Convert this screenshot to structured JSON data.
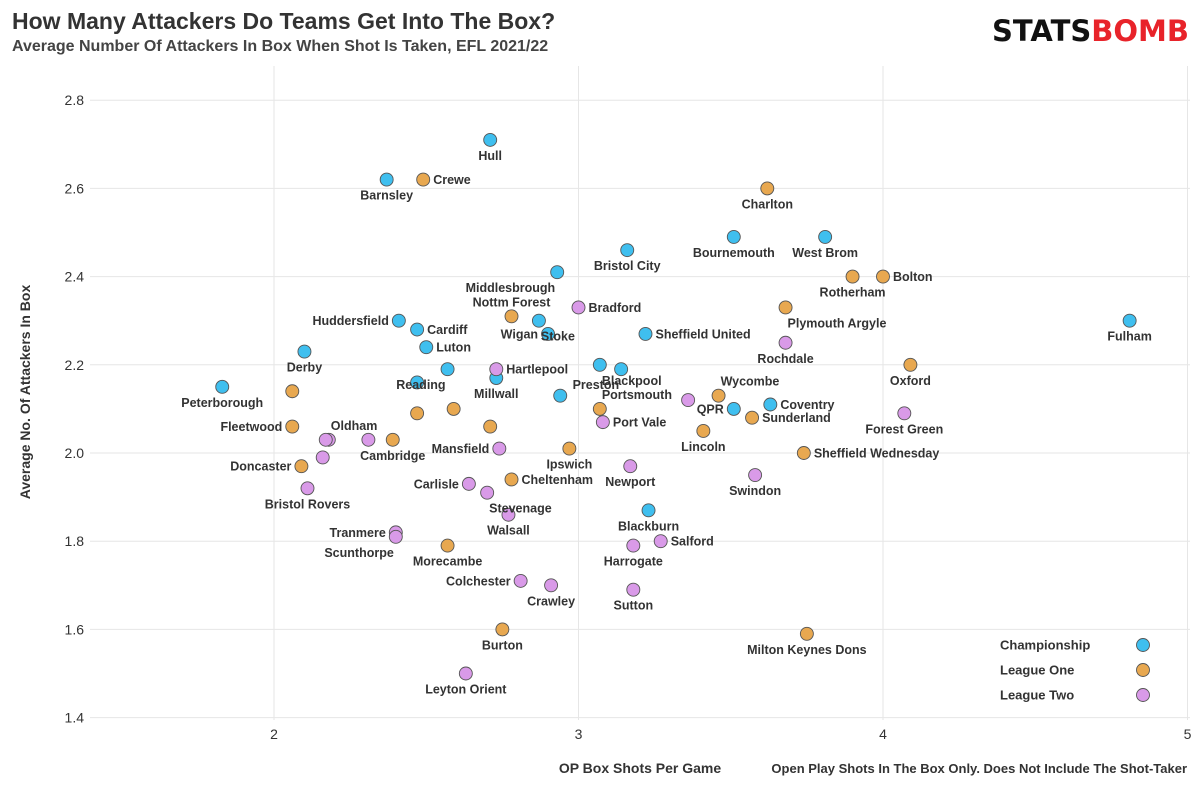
{
  "header": {
    "title": "How Many Attackers Do Teams Get Into The Box?",
    "subtitle": "Average Number Of Attackers In Box When Shot Is Taken, EFL 2021/22",
    "logo_part1": "STATS",
    "logo_part2": "BOMB"
  },
  "chart_data": {
    "type": "scatter",
    "title": "How Many Attackers Do Teams Get Into The Box?",
    "subtitle": "Average Number Of Attackers In Box When Shot Is Taken, EFL 2021/22",
    "xlabel": "OP Box Shots Per Game",
    "ylabel": "Average No. Of Attackers In Box",
    "footnote": "Open Play Shots In The Box Only. Does Not Include The Shot-Taker",
    "xlim": [
      1.4,
      5.0
    ],
    "ylim": [
      1.38,
      2.9
    ],
    "xticks": [
      2,
      3,
      4,
      5
    ],
    "yticks": [
      1.4,
      1.6,
      1.8,
      2.0,
      2.2,
      2.4,
      2.6,
      2.8
    ],
    "ytick_labels": [
      "1.4",
      "1.6",
      "1.8",
      "2.0",
      "2.2",
      "2.4",
      "2.6",
      "2.8"
    ],
    "grid": true,
    "legend_position": "bottom-right",
    "colors": {
      "Championship": "#3fbfef",
      "League One": "#e8a850",
      "League Two": "#d99ae8"
    },
    "series": [
      {
        "name": "Championship",
        "points": [
          {
            "team": "Hull",
            "x": 2.71,
            "y": 2.71,
            "anchor": "below"
          },
          {
            "team": "Barnsley",
            "x": 2.37,
            "y": 2.62,
            "anchor": "below"
          },
          {
            "team": "Bournemouth",
            "x": 3.51,
            "y": 2.49,
            "anchor": "below"
          },
          {
            "team": "West Brom",
            "x": 3.81,
            "y": 2.49,
            "anchor": "below"
          },
          {
            "team": "Bristol City",
            "x": 3.16,
            "y": 2.46,
            "anchor": "below"
          },
          {
            "team": "Middlesbrough",
            "x": 2.93,
            "y": 2.41,
            "anchor": "below-left"
          },
          {
            "team": "Fulham",
            "x": 4.81,
            "y": 2.3,
            "anchor": "below"
          },
          {
            "team": "Huddersfield",
            "x": 2.41,
            "y": 2.3,
            "anchor": "left"
          },
          {
            "team": "Cardiff",
            "x": 2.47,
            "y": 2.28,
            "anchor": "right"
          },
          {
            "team": "Stoke",
            "x": 2.87,
            "y": 2.3,
            "anchor": "below-right"
          },
          {
            "team": "Wigan",
            "x": 2.9,
            "y": 2.27,
            "anchor": "left"
          },
          {
            "team": "Sheffield United",
            "x": 3.22,
            "y": 2.27,
            "anchor": "right"
          },
          {
            "team": "Luton",
            "x": 2.5,
            "y": 2.24,
            "anchor": "right"
          },
          {
            "team": "Derby",
            "x": 2.1,
            "y": 2.23,
            "anchor": "below"
          },
          {
            "team": "Blackpool",
            "x": 3.07,
            "y": 2.2,
            "anchor": "below-right"
          },
          {
            "team": "Preston",
            "x": 3.14,
            "y": 2.19,
            "anchor": "below-left"
          },
          {
            "team": "Reading",
            "x": 2.57,
            "y": 2.19,
            "anchor": "below-left"
          },
          {
            "team": "Millwall",
            "x": 2.73,
            "y": 2.17,
            "anchor": "below"
          },
          {
            "team": "Peterborough",
            "x": 1.83,
            "y": 2.15,
            "anchor": "below"
          },
          {
            "team": "Coventry",
            "x": 3.63,
            "y": 2.11,
            "anchor": "right"
          },
          {
            "team": "QPR",
            "x": 3.51,
            "y": 2.1,
            "anchor": "left"
          },
          {
            "team": "Blackburn",
            "x": 3.23,
            "y": 1.87,
            "anchor": "below"
          },
          {
            "team": "",
            "x": 2.47,
            "y": 2.16,
            "anchor": "none"
          },
          {
            "team": "",
            "x": 2.94,
            "y": 2.13,
            "anchor": "none"
          }
        ]
      },
      {
        "name": "League One",
        "points": [
          {
            "team": "Crewe",
            "x": 2.49,
            "y": 2.62,
            "anchor": "right"
          },
          {
            "team": "Charlton",
            "x": 3.62,
            "y": 2.6,
            "anchor": "below"
          },
          {
            "team": "Bolton",
            "x": 4.0,
            "y": 2.4,
            "anchor": "right"
          },
          {
            "team": "Rotherham",
            "x": 3.9,
            "y": 2.4,
            "anchor": "below"
          },
          {
            "team": "Plymouth Argyle",
            "x": 3.68,
            "y": 2.33,
            "anchor": "below-right"
          },
          {
            "team": "Nottm Forest",
            "x": 2.78,
            "y": 2.31,
            "anchor": "above"
          },
          {
            "team": "Oxford",
            "x": 4.09,
            "y": 2.2,
            "anchor": "below"
          },
          {
            "team": "Wycombe",
            "x": 3.46,
            "y": 2.13,
            "anchor": "above-right"
          },
          {
            "team": "Portsmouth",
            "x": 3.07,
            "y": 2.1,
            "anchor": "above-right"
          },
          {
            "team": "Sunderland",
            "x": 3.57,
            "y": 2.08,
            "anchor": "right"
          },
          {
            "team": "Lincoln",
            "x": 3.41,
            "y": 2.05,
            "anchor": "below"
          },
          {
            "team": "Sheffield Wednesday",
            "x": 3.74,
            "y": 2.0,
            "anchor": "right"
          },
          {
            "team": "Fleetwood",
            "x": 2.06,
            "y": 2.06,
            "anchor": "left"
          },
          {
            "team": "Cambridge",
            "x": 2.39,
            "y": 2.03,
            "anchor": "below"
          },
          {
            "team": "Ipswich",
            "x": 2.97,
            "y": 2.01,
            "anchor": "below"
          },
          {
            "team": "Doncaster",
            "x": 2.09,
            "y": 1.97,
            "anchor": "left"
          },
          {
            "team": "Cheltenham",
            "x": 2.78,
            "y": 1.94,
            "anchor": "right"
          },
          {
            "team": "Morecambe",
            "x": 2.57,
            "y": 1.79,
            "anchor": "below"
          },
          {
            "team": "Burton",
            "x": 2.75,
            "y": 1.6,
            "anchor": "below"
          },
          {
            "team": "Milton Keynes Dons",
            "x": 3.75,
            "y": 1.59,
            "anchor": "below"
          },
          {
            "team": "",
            "x": 2.06,
            "y": 2.14,
            "anchor": "none"
          },
          {
            "team": "",
            "x": 2.47,
            "y": 2.09,
            "anchor": "none"
          },
          {
            "team": "",
            "x": 2.59,
            "y": 2.1,
            "anchor": "none"
          },
          {
            "team": "",
            "x": 2.71,
            "y": 2.06,
            "anchor": "none"
          }
        ]
      },
      {
        "name": "League Two",
        "points": [
          {
            "team": "Bradford",
            "x": 3.0,
            "y": 2.33,
            "anchor": "right"
          },
          {
            "team": "Rochdale",
            "x": 3.68,
            "y": 2.25,
            "anchor": "below"
          },
          {
            "team": "Hartlepool",
            "x": 2.73,
            "y": 2.19,
            "anchor": "right"
          },
          {
            "team": "Forest Green",
            "x": 4.07,
            "y": 2.09,
            "anchor": "below"
          },
          {
            "team": "Port Vale",
            "x": 3.08,
            "y": 2.07,
            "anchor": "right"
          },
          {
            "team": "Oldham",
            "x": 2.18,
            "y": 2.03,
            "anchor": "above-right"
          },
          {
            "team": "Mansfield",
            "x": 2.74,
            "y": 2.01,
            "anchor": "left"
          },
          {
            "team": "Newport",
            "x": 3.17,
            "y": 1.97,
            "anchor": "below"
          },
          {
            "team": "Swindon",
            "x": 3.58,
            "y": 1.95,
            "anchor": "below"
          },
          {
            "team": "Carlisle",
            "x": 2.64,
            "y": 1.93,
            "anchor": "left"
          },
          {
            "team": "Stevenage",
            "x": 2.7,
            "y": 1.91,
            "anchor": "below-right"
          },
          {
            "team": "Bristol Rovers",
            "x": 2.11,
            "y": 1.92,
            "anchor": "below"
          },
          {
            "team": "Walsall",
            "x": 2.77,
            "y": 1.86,
            "anchor": "below"
          },
          {
            "team": "Tranmere",
            "x": 2.4,
            "y": 1.82,
            "anchor": "left"
          },
          {
            "team": "Scunthorpe",
            "x": 2.4,
            "y": 1.81,
            "anchor": "below-left"
          },
          {
            "team": "Salford",
            "x": 3.27,
            "y": 1.8,
            "anchor": "right"
          },
          {
            "team": "Harrogate",
            "x": 3.18,
            "y": 1.79,
            "anchor": "below"
          },
          {
            "team": "Colchester",
            "x": 2.81,
            "y": 1.71,
            "anchor": "left"
          },
          {
            "team": "Crawley",
            "x": 2.91,
            "y": 1.7,
            "anchor": "below"
          },
          {
            "team": "Sutton",
            "x": 3.18,
            "y": 1.69,
            "anchor": "below"
          },
          {
            "team": "Leyton Orient",
            "x": 2.63,
            "y": 1.5,
            "anchor": "below"
          },
          {
            "team": "",
            "x": 3.36,
            "y": 2.12,
            "anchor": "none"
          },
          {
            "team": "",
            "x": 2.17,
            "y": 2.03,
            "anchor": "none"
          },
          {
            "team": "",
            "x": 2.31,
            "y": 2.03,
            "anchor": "none"
          },
          {
            "team": "",
            "x": 2.16,
            "y": 1.99,
            "anchor": "none"
          }
        ]
      }
    ]
  }
}
